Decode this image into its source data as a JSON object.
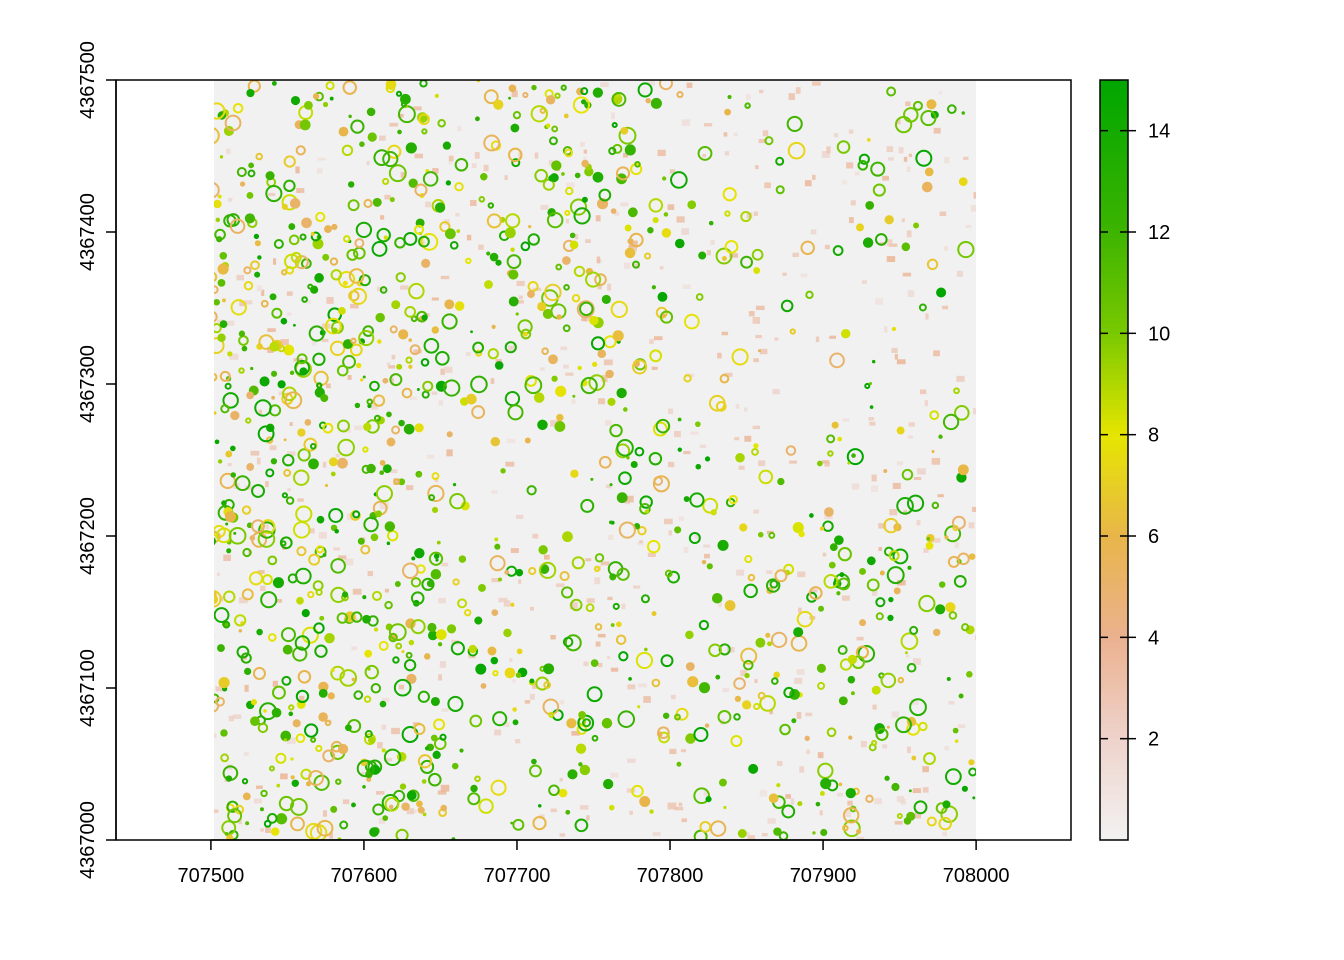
{
  "chart_data": {
    "type": "heatmap",
    "title": "",
    "xlabel": "",
    "ylabel": "",
    "x_ticks": [
      "707500",
      "707600",
      "707700",
      "707800",
      "707900",
      "708000"
    ],
    "x_tick_values": [
      707500,
      707600,
      707700,
      707800,
      707900,
      708000
    ],
    "y_ticks": [
      "4367000",
      "4367100",
      "4367200",
      "4367300",
      "4367400",
      "4367500"
    ],
    "y_tick_values": [
      4367000,
      4367100,
      4367200,
      4367300,
      4367400,
      4367500
    ],
    "xlim": [
      707438,
      708062
    ],
    "ylim": [
      4367000,
      4367500
    ],
    "raster_extent": {
      "xmin": 707500,
      "xmax": 708000,
      "ymin": 4367000,
      "ymax": 4367500
    },
    "value_range": [
      0,
      15
    ],
    "legend": {
      "position": "right",
      "ticks": [
        "2",
        "4",
        "6",
        "8",
        "10",
        "12",
        "14"
      ],
      "tick_values": [
        2,
        4,
        6,
        8,
        10,
        12,
        14
      ],
      "range": [
        0,
        15
      ],
      "color_stops": [
        {
          "value": 0,
          "color": "#f2f2f2"
        },
        {
          "value": 2,
          "color": "#eed3cb"
        },
        {
          "value": 4,
          "color": "#ebb18f"
        },
        {
          "value": 6,
          "color": "#e8b54a"
        },
        {
          "value": 8,
          "color": "#e6e600"
        },
        {
          "value": 10,
          "color": "#7ac900"
        },
        {
          "value": 12,
          "color": "#3db400"
        },
        {
          "value": 15,
          "color": "#00a600"
        }
      ]
    },
    "grid": false
  }
}
